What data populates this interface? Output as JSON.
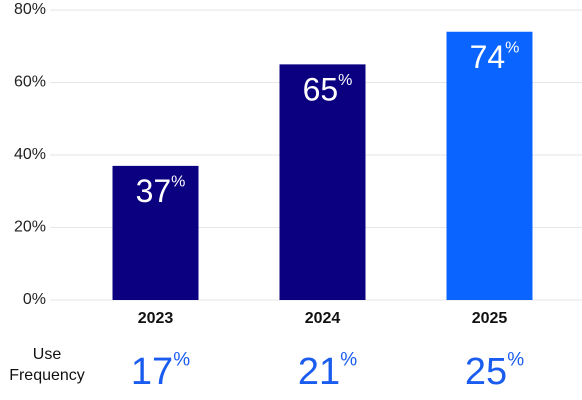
{
  "chart_data": {
    "type": "bar",
    "categories": [
      "2023",
      "2024",
      "2025"
    ],
    "values": [
      37,
      65,
      74
    ],
    "colors": [
      "#0a0080",
      "#0a0080",
      "#0a64ff"
    ],
    "unit": "%",
    "ylim": [
      0,
      80
    ],
    "yticks": [
      {
        "value": 0,
        "label": "0%"
      },
      {
        "value": 20,
        "label": "20%"
      },
      {
        "value": 40,
        "label": "40%"
      },
      {
        "value": 60,
        "label": "60%"
      },
      {
        "value": 80,
        "label": "80%"
      }
    ],
    "grid": true,
    "use_frequency": {
      "label": "Use Frequency",
      "values": [
        17,
        21,
        25
      ],
      "color": "#1a5cf0"
    }
  }
}
